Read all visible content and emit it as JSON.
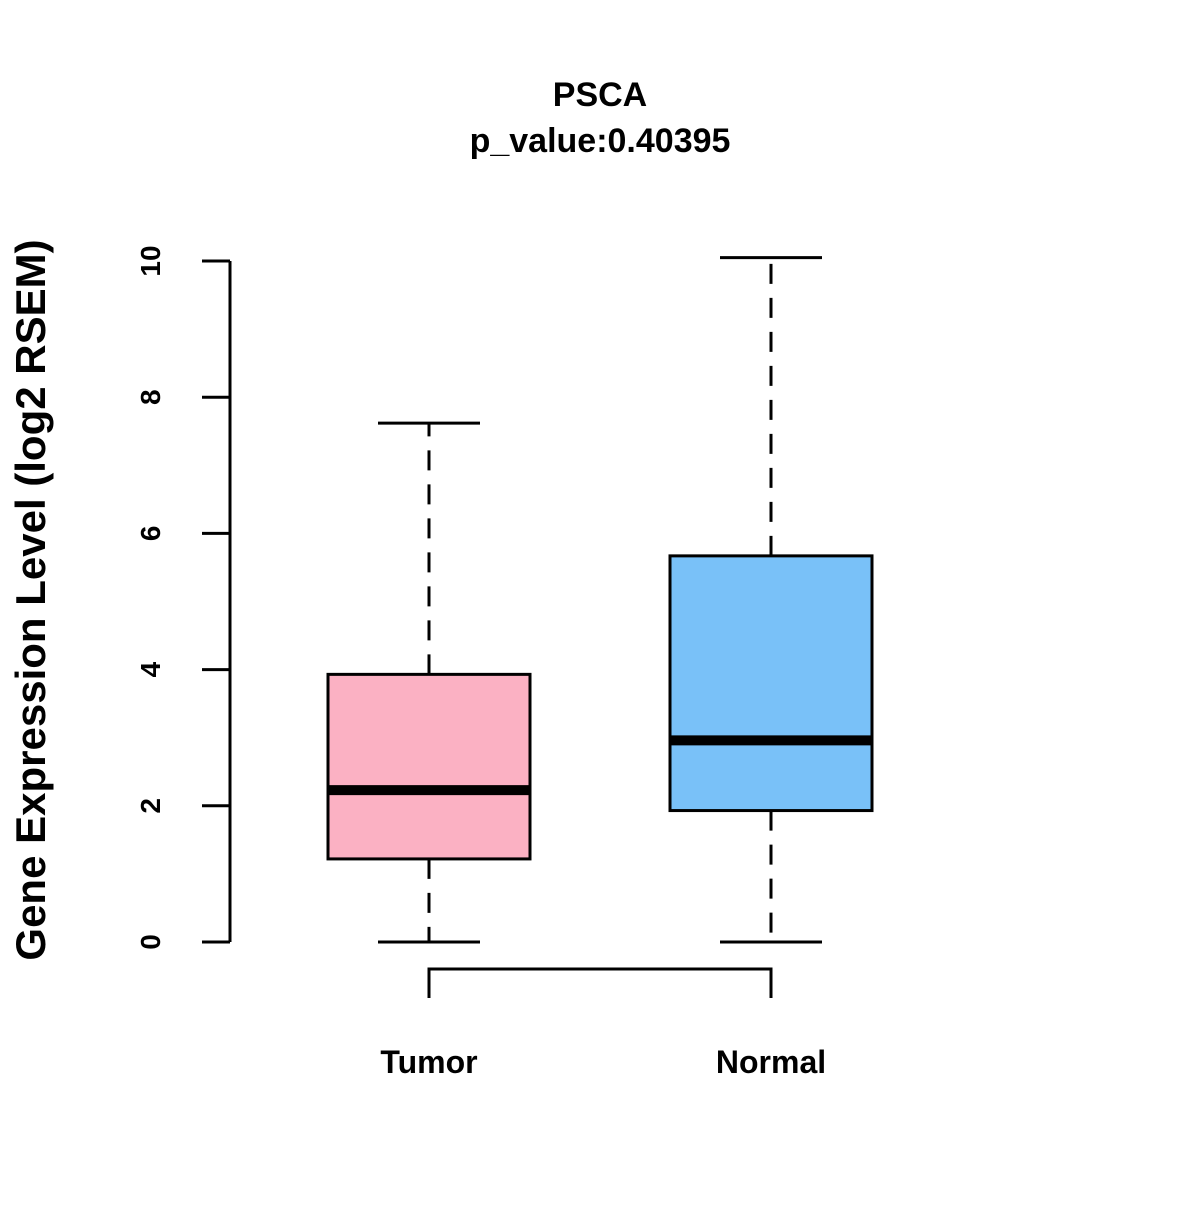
{
  "chart_data": {
    "type": "boxplot",
    "title": "PSCA",
    "subtitle": "p_value:0.40395",
    "xlabel": "",
    "ylabel": "Gene Expression Level (log2 RSEM)",
    "ylim": [
      0,
      10
    ],
    "yticks": [
      0,
      2,
      4,
      6,
      8,
      10
    ],
    "grid": false,
    "categories": [
      "Tumor",
      "Normal"
    ],
    "series": [
      {
        "name": "Tumor",
        "min": 0,
        "q1": 1.22,
        "median": 2.23,
        "q3": 3.93,
        "max": 7.62,
        "color": "#FBB1C3"
      },
      {
        "name": "Normal",
        "min": 0,
        "q1": 1.93,
        "median": 2.96,
        "q3": 5.67,
        "max": 10.05,
        "color": "#79C1F8"
      }
    ],
    "comparison_bracket": [
      "Tumor",
      "Normal"
    ]
  }
}
